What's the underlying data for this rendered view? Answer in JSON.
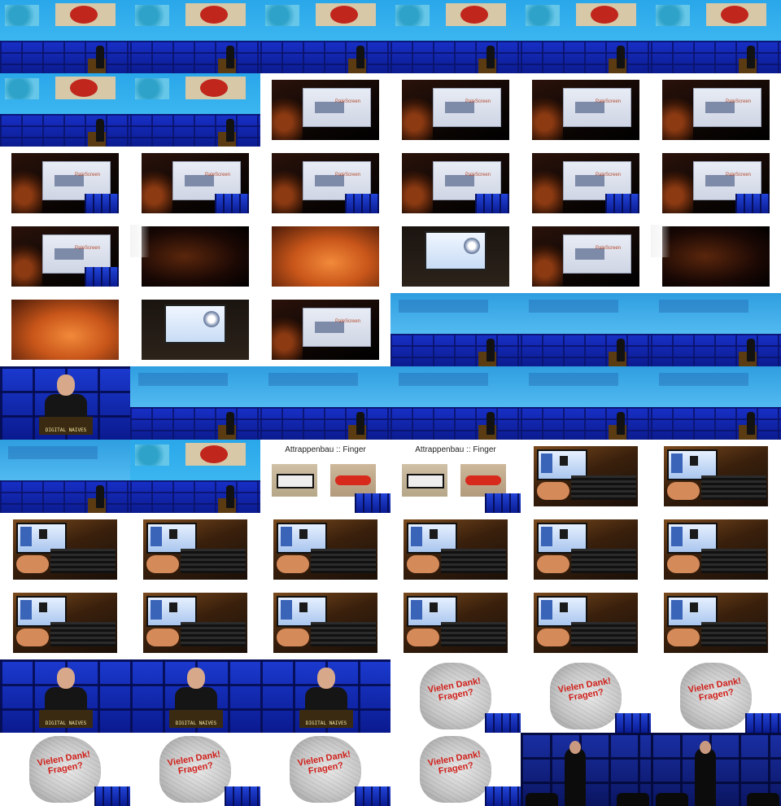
{
  "grid": {
    "columns": 6,
    "rows": 11,
    "tiles": [
      {
        "kind": "stage-slide"
      },
      {
        "kind": "stage-slide"
      },
      {
        "kind": "stage-slide"
      },
      {
        "kind": "stage-slide"
      },
      {
        "kind": "stage-slide"
      },
      {
        "kind": "stage-slide"
      },
      {
        "kind": "stage-slide"
      },
      {
        "kind": "stage-slide"
      },
      {
        "kind": "dark-slide",
        "brand": "PaleScreen"
      },
      {
        "kind": "dark-slide",
        "brand": "PaleScreen"
      },
      {
        "kind": "dark-slide",
        "brand": "PaleScreen"
      },
      {
        "kind": "dark-slide",
        "brand": "PaleScreen"
      },
      {
        "kind": "dark-slide-inset",
        "brand": "PaleScreen"
      },
      {
        "kind": "dark-slide-inset",
        "brand": "PaleScreen"
      },
      {
        "kind": "dark-slide-inset",
        "brand": "PaleScreen"
      },
      {
        "kind": "dark-slide-inset",
        "brand": "PaleScreen"
      },
      {
        "kind": "dark-slide-inset",
        "brand": "PaleScreen"
      },
      {
        "kind": "dark-slide-inset",
        "brand": "PaleScreen"
      },
      {
        "kind": "dark-slide-inset",
        "brand": "PaleScreen"
      },
      {
        "kind": "blur-dark"
      },
      {
        "kind": "warm-desk"
      },
      {
        "kind": "laptop-glow"
      },
      {
        "kind": "dark-slide",
        "brand": "PaleScreen"
      },
      {
        "kind": "blur-dark"
      },
      {
        "kind": "warm-desk"
      },
      {
        "kind": "laptop-glow"
      },
      {
        "kind": "dark-slide",
        "brand": "PaleScreen"
      },
      {
        "kind": "stage-wide"
      },
      {
        "kind": "stage-wide"
      },
      {
        "kind": "stage-wide"
      },
      {
        "kind": "closeup",
        "desk_label": "DIGITAL NAIVES"
      },
      {
        "kind": "stage-wide"
      },
      {
        "kind": "stage-wide"
      },
      {
        "kind": "stage-wide"
      },
      {
        "kind": "stage-wide"
      },
      {
        "kind": "stage-wide"
      },
      {
        "kind": "stage-wide"
      },
      {
        "kind": "stage-slide"
      },
      {
        "kind": "attrap",
        "title": "Attrappenbau :: Finger"
      },
      {
        "kind": "attrap",
        "title": "Attrappenbau :: Finger"
      },
      {
        "kind": "keyboard"
      },
      {
        "kind": "keyboard"
      },
      {
        "kind": "keyboard"
      },
      {
        "kind": "keyboard"
      },
      {
        "kind": "keyboard"
      },
      {
        "kind": "keyboard"
      },
      {
        "kind": "keyboard"
      },
      {
        "kind": "keyboard"
      },
      {
        "kind": "keyboard"
      },
      {
        "kind": "keyboard"
      },
      {
        "kind": "keyboard"
      },
      {
        "kind": "keyboard"
      },
      {
        "kind": "keyboard"
      },
      {
        "kind": "keyboard"
      },
      {
        "kind": "closeup",
        "desk_label": "DIGITAL NAIVES"
      },
      {
        "kind": "closeup",
        "desk_label": "DIGITAL NAIVES"
      },
      {
        "kind": "closeup",
        "desk_label": "DIGITAL NAIVES"
      },
      {
        "kind": "thanks",
        "text": "Vielen Dank! Fragen?"
      },
      {
        "kind": "thanks",
        "text": "Vielen Dank! Fragen?"
      },
      {
        "kind": "thanks",
        "text": "Vielen Dank! Fragen?"
      },
      {
        "kind": "thanks",
        "text": "Vielen Dank! Fragen?"
      },
      {
        "kind": "thanks",
        "text": "Vielen Dank! Fragen?"
      },
      {
        "kind": "thanks",
        "text": "Vielen Dank! Fragen?"
      },
      {
        "kind": "thanks",
        "text": "Vielen Dank! Fragen?"
      },
      {
        "kind": "darkstage"
      },
      {
        "kind": "darkstage"
      }
    ]
  },
  "colors": {
    "stage_blue": "#0b1d8a",
    "screen_cyan": "#2aa7ea",
    "thanks_red": "#d0201a"
  }
}
